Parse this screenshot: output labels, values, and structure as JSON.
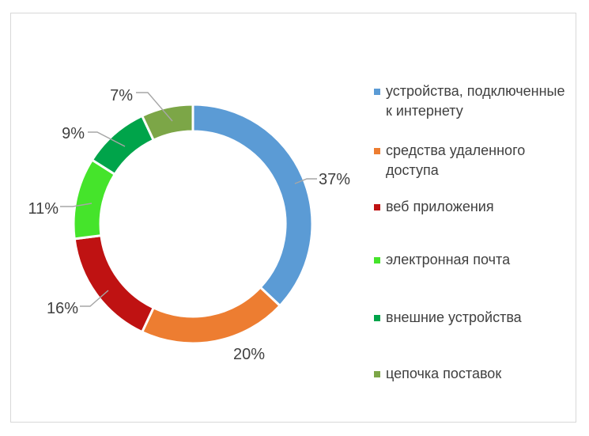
{
  "frame": {
    "background": "#ffffff",
    "border_color": "#d8d8d8"
  },
  "chart_data": {
    "type": "pie",
    "subtype": "donut",
    "title": "",
    "unit": "%",
    "direction": "clockwise",
    "start_angle_deg": 0,
    "hole_ratio": 0.775,
    "legend_position": "right",
    "categories": [
      "устройства, подключенные к интернету",
      "средства удаленного доступа",
      "веб приложения",
      "электронная почта",
      "внешние устройства",
      "цепочка поставок"
    ],
    "values": [
      37,
      20,
      16,
      11,
      9,
      7
    ],
    "data_labels": [
      "37%",
      "20%",
      "16%",
      "11%",
      "9%",
      "7%"
    ],
    "colors": [
      "#5B9BD5",
      "#ED7D31",
      "#BF1212",
      "#45E42B",
      "#00A44A",
      "#7CA647"
    ],
    "label_color": "#404040",
    "leader_line_color": "#A6A6A6",
    "slice_gap_color": "#FFFFFF"
  },
  "legend": {
    "items": [
      {
        "label": "устройства, подключенные\nк интернету",
        "color": "#5B9BD5"
      },
      {
        "label": "средства удаленного\nдоступа",
        "color": "#ED7D31"
      },
      {
        "label": "веб приложения",
        "color": "#BF1212"
      },
      {
        "label": "электронная почта",
        "color": "#45E42B"
      },
      {
        "label": "внешние устройства",
        "color": "#00A44A"
      },
      {
        "label": "цепочка поставок",
        "color": "#7CA647"
      }
    ]
  }
}
